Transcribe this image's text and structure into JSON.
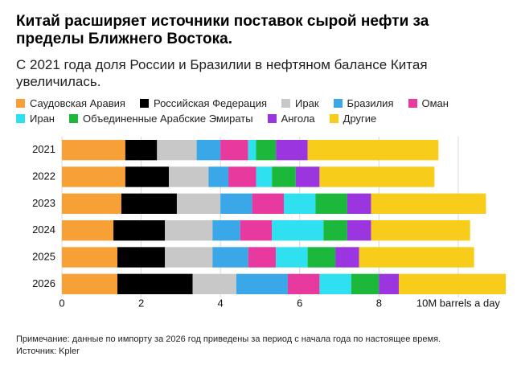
{
  "chart_data": {
    "type": "stacked-barh",
    "title": "Китай расширяет источники поставок сырой нефти за пределы Ближнего Востока.",
    "subtitle": "С 2021 года доля России и Бразилии в нефтяном балансе Китая увеличилась.",
    "note": "Примечание: данные по импорту за 2026 год приведены за период с начала года по настоящее время.",
    "source": "Источник: Kpler",
    "categories": [
      "2021",
      "2022",
      "2023",
      "2024",
      "2025",
      "2026"
    ],
    "series": [
      {
        "name": "Саудовская Аравия",
        "color": "#f7a035",
        "values": [
          1.6,
          1.6,
          1.5,
          1.3,
          1.4,
          1.4
        ]
      },
      {
        "name": "Российская Федерация",
        "color": "#000000",
        "values": [
          0.8,
          1.1,
          1.4,
          1.3,
          1.2,
          1.9
        ]
      },
      {
        "name": "Ирак",
        "color": "#c8c8c8",
        "values": [
          1.0,
          1.0,
          1.1,
          1.2,
          1.2,
          1.1
        ]
      },
      {
        "name": "Бразилия",
        "color": "#3aa8e8",
        "values": [
          0.6,
          0.5,
          0.8,
          0.7,
          0.9,
          1.3
        ]
      },
      {
        "name": "Оман",
        "color": "#e8399e",
        "values": [
          0.7,
          0.7,
          0.8,
          0.8,
          0.7,
          0.8
        ]
      },
      {
        "name": "Иран",
        "color": "#2ee0f0",
        "values": [
          0.2,
          0.4,
          0.8,
          1.3,
          0.8,
          0.8
        ]
      },
      {
        "name": "Объединенные Арабские Эмираты",
        "color": "#1bb83b",
        "values": [
          0.5,
          0.6,
          0.8,
          0.6,
          0.7,
          0.7
        ]
      },
      {
        "name": "Ангола",
        "color": "#9b35e0",
        "values": [
          0.8,
          0.6,
          0.6,
          0.6,
          0.6,
          0.5
        ]
      },
      {
        "name": "Другие",
        "color": "#f7cc1a",
        "values": [
          3.3,
          2.9,
          2.9,
          2.5,
          2.9,
          2.7
        ]
      }
    ],
    "xlim": [
      0,
      11.3
    ],
    "xticks": [
      0,
      2,
      4,
      6,
      8,
      {
        "value": 10,
        "label": "10M barrels a day"
      }
    ],
    "grid": true
  }
}
